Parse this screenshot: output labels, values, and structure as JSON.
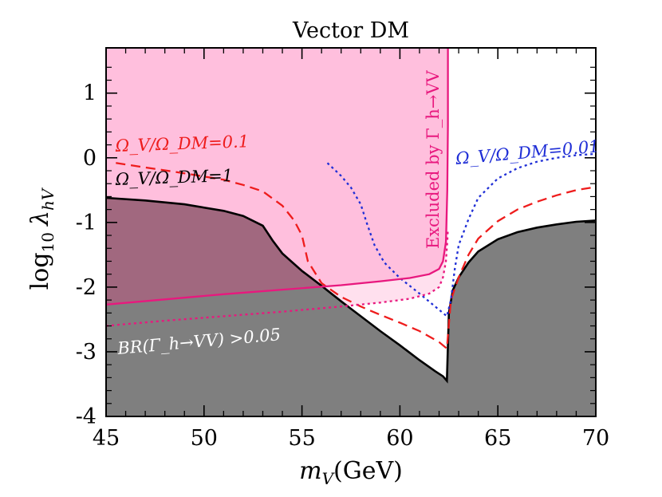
{
  "chart_data": {
    "type": "line",
    "title": "Vector DM",
    "xlabel": "m_V(GeV)",
    "ylabel": "log10 λ_hV",
    "xlim": [
      45,
      70
    ],
    "ylim": [
      -4,
      1.7
    ],
    "x_ticks": [
      "45",
      "50",
      "55",
      "60",
      "65",
      "70"
    ],
    "y_ticks": [
      "-4",
      "-3",
      "-2",
      "-1",
      "0",
      "1"
    ],
    "series": [
      {
        "name": "Ω_V/Ω_DM=1",
        "style": "solid",
        "color": "#000000",
        "x": [
          45,
          47,
          49,
          51,
          52,
          53,
          53.5,
          54,
          55,
          56,
          57,
          58,
          59,
          60,
          61,
          61.8,
          62.2,
          62.4,
          62.5,
          62.7,
          63,
          63.5,
          64,
          65,
          66,
          67,
          68,
          69,
          70
        ],
        "y": [
          -0.62,
          -0.66,
          -0.72,
          -0.82,
          -0.9,
          -1.05,
          -1.28,
          -1.48,
          -1.75,
          -1.98,
          -2.22,
          -2.45,
          -2.68,
          -2.9,
          -3.13,
          -3.3,
          -3.38,
          -3.45,
          -2.4,
          -2.05,
          -1.85,
          -1.62,
          -1.45,
          -1.26,
          -1.15,
          -1.08,
          -1.03,
          -0.99,
          -0.97
        ]
      },
      {
        "name": "Ω_V/Ω_DM=0.1",
        "style": "dashed",
        "color": "#ee1c1c",
        "x": [
          45.5,
          47,
          49,
          51,
          52,
          53,
          54,
          54.6,
          55,
          55.3,
          56,
          57,
          58,
          59,
          60,
          61,
          62,
          62.4,
          62.6,
          63,
          63.5,
          64,
          65,
          66,
          67,
          68,
          69,
          70
        ],
        "y": [
          -0.08,
          -0.15,
          -0.24,
          -0.34,
          -0.42,
          -0.52,
          -0.74,
          -0.97,
          -1.2,
          -1.6,
          -1.94,
          -2.15,
          -2.3,
          -2.43,
          -2.55,
          -2.68,
          -2.85,
          -2.95,
          -2.2,
          -1.85,
          -1.5,
          -1.25,
          -0.98,
          -0.8,
          -0.68,
          -0.58,
          -0.5,
          -0.45
        ]
      },
      {
        "name": "Ω_V/Ω_DM=0.01",
        "style": "dotted",
        "color": "#1f2ed6",
        "x": [
          56.3,
          57,
          57.5,
          58,
          58.3,
          58.7,
          59.2,
          60,
          61,
          62,
          62.4,
          62.6,
          62.8,
          63,
          63.5,
          64,
          65,
          66,
          67,
          68,
          69,
          70
        ],
        "y": [
          -0.08,
          -0.28,
          -0.46,
          -0.72,
          -1.0,
          -1.35,
          -1.62,
          -1.86,
          -2.1,
          -2.35,
          -2.45,
          -2.2,
          -1.72,
          -1.35,
          -0.95,
          -0.62,
          -0.32,
          -0.16,
          -0.06,
          0.0,
          0.04,
          0.06
        ]
      },
      {
        "name": "Excluded by Γ_h→VV",
        "style": "solid",
        "color": "#e8187e",
        "x": [
          45,
          48,
          51,
          54,
          57,
          59,
          60.5,
          61.5,
          62,
          62.2,
          62.35,
          62.42,
          62.45,
          62.45
        ],
        "y": [
          -2.27,
          -2.19,
          -2.11,
          -2.04,
          -1.97,
          -1.91,
          -1.86,
          -1.8,
          -1.72,
          -1.6,
          -1.3,
          -0.5,
          0.5,
          1.7
        ]
      },
      {
        "name": "BR(Γ_h→VV)>0.05",
        "style": "dotted",
        "color": "#e8187e",
        "x": [
          45,
          48,
          51,
          54,
          57,
          59,
          60.5,
          61.5,
          62,
          62.2,
          62.35,
          62.42,
          62.45
        ],
        "y": [
          -2.6,
          -2.52,
          -2.45,
          -2.38,
          -2.3,
          -2.24,
          -2.18,
          -2.1,
          -2.0,
          -1.85,
          -1.6,
          -1.3,
          -1.1
        ]
      }
    ],
    "annotations": {
      "relic_0_1": "Ω_V/Ω_DM=0.1",
      "relic_1": "Ω_V/Ω_DM=1",
      "relic_0_01": "Ω_V/Ω_DM=0.01",
      "excluded": "Excluded by Γ_h→VV",
      "br_limit": "BR(Γ_h→VV) >0.05"
    },
    "colors": {
      "excluded_fill": "#ffbfdd",
      "overlap_fill": "#a1687f",
      "gray_fill": "#7f7f7f",
      "br_band": "#ffe0ee"
    }
  }
}
